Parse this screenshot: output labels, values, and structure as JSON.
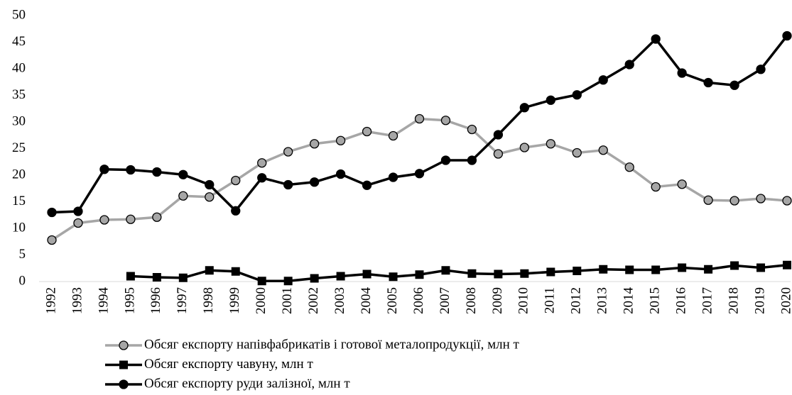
{
  "chart_data": {
    "type": "line",
    "categories": [
      "1992",
      "1993",
      "1994",
      "1995",
      "1996",
      "1997",
      "1998",
      "1999",
      "2000",
      "2001",
      "2002",
      "2003",
      "2004",
      "2005",
      "2006",
      "2007",
      "2008",
      "2009",
      "2010",
      "2011",
      "2012",
      "2013",
      "2014",
      "2015",
      "2016",
      "2017",
      "2018",
      "2019",
      "2020"
    ],
    "series": [
      {
        "name": "Обсяг експорту напівфабрикатів і готової металопродукції, млн т",
        "color": "#a6a6a6",
        "marker": "circle",
        "values": [
          7.8,
          11.0,
          11.6,
          11.7,
          12.1,
          16.1,
          15.9,
          19.0,
          22.3,
          24.4,
          25.9,
          26.5,
          28.2,
          27.4,
          30.6,
          30.3,
          28.6,
          24.0,
          25.2,
          25.9,
          24.2,
          24.7,
          21.5,
          17.8,
          18.3,
          15.3,
          15.2,
          15.6,
          15.2
        ]
      },
      {
        "name": "Обсяг експорту чавуну, млн т",
        "color": "#000000",
        "marker": "square",
        "values": [
          null,
          null,
          null,
          1.0,
          0.8,
          0.7,
          2.1,
          1.9,
          0.1,
          0.1,
          0.6,
          1.0,
          1.4,
          0.9,
          1.3,
          2.1,
          1.5,
          1.4,
          1.5,
          1.8,
          2.0,
          2.3,
          2.2,
          2.2,
          2.6,
          2.3,
          3.0,
          2.6,
          3.1
        ]
      },
      {
        "name": "Обсяг експорту руди залізної, млн т",
        "color": "#000000",
        "marker": "circle",
        "values": [
          13.0,
          13.2,
          21.1,
          21.0,
          20.6,
          20.1,
          18.2,
          13.3,
          19.5,
          18.2,
          18.7,
          20.2,
          18.1,
          19.6,
          20.3,
          22.8,
          22.8,
          27.6,
          32.7,
          34.1,
          35.1,
          37.9,
          40.8,
          45.6,
          39.2,
          37.4,
          36.9,
          39.9,
          46.2
        ]
      }
    ],
    "ylim": [
      0,
      50
    ],
    "yticks": [
      0,
      5,
      10,
      15,
      20,
      25,
      30,
      35,
      40,
      45,
      50
    ],
    "grid": false
  }
}
